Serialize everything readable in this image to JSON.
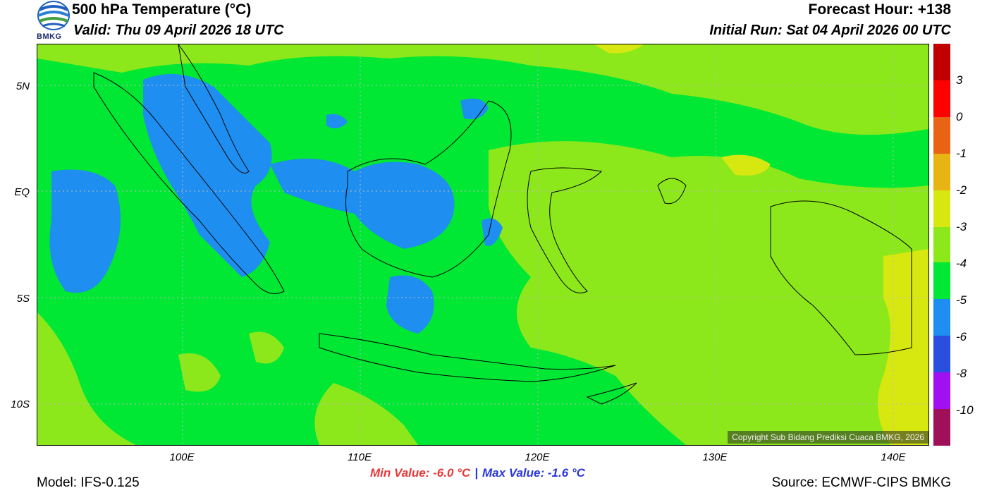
{
  "header": {
    "title": "500 hPa Temperature (°C)",
    "valid": "Valid: Thu 09 April 2026 18 UTC",
    "forecast_hour": "Forecast Hour: +138",
    "initial_run": "Initial Run: Sat 04 April 2026 00 UTC",
    "logo_text": "BMKG"
  },
  "map": {
    "lat_labels": [
      "5N",
      "EQ",
      "5S",
      "10S"
    ],
    "lon_labels": [
      "100E",
      "110E",
      "120E",
      "130E",
      "140E"
    ],
    "copyright": "Copyright Sub Bidang Prediksi Cuaca BMKG, 2026",
    "colors": {
      "c_m4_m3": "#00e834",
      "c_m3_m2": "#8ce81a",
      "c_m2_m1": "#d6e810",
      "c_m5_m4": "#1e8ef0"
    }
  },
  "colorbar": {
    "labels": [
      "3",
      "0",
      "-1",
      "-2",
      "-3",
      "-4",
      "-5",
      "-6",
      "-8",
      "-10"
    ],
    "colors": [
      "#c00000",
      "#ff0000",
      "#e86414",
      "#e8b414",
      "#d6e810",
      "#8ce81a",
      "#00e834",
      "#1e8ef0",
      "#2a4ee0",
      "#a010f0",
      "#a0105a"
    ]
  },
  "stats": {
    "min_label": "Min Value: -6.0 °C",
    "separator": "|",
    "max_label": "Max Value: -1.6 °C"
  },
  "footer": {
    "model": "Model: IFS-0.125",
    "source": "Source: ECMWF-CIPS BMKG"
  }
}
